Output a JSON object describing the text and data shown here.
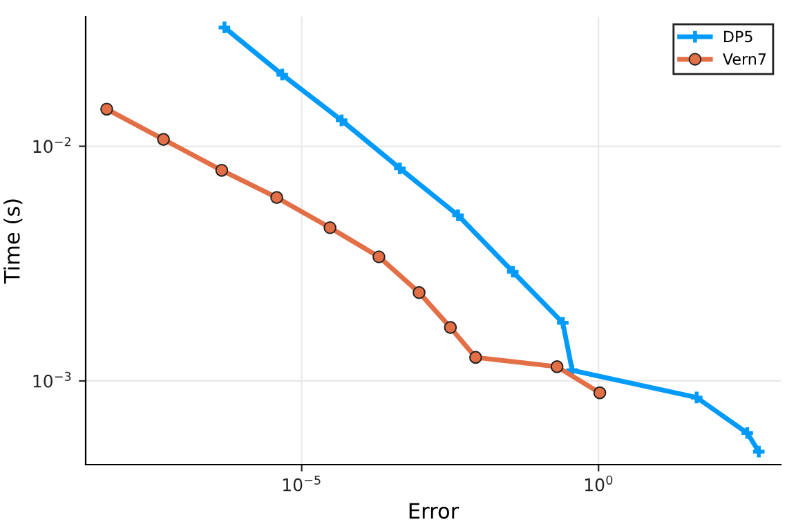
{
  "chart_data": {
    "type": "line",
    "xlabel": "Error",
    "ylabel": "Time (s)",
    "log": "xy",
    "grid": true,
    "legend": "top right",
    "xlim": [
      2.3e-09,
      1175
    ],
    "ylim": [
      0.00044,
      0.0357
    ],
    "xticks": [
      {
        "value": 1e-05,
        "label": "10$^{−5}$"
      },
      {
        "value": 1,
        "label": "10$^{0}$"
      }
    ],
    "yticks": [
      {
        "value": 0.001,
        "label": "10$^{−3}$"
      },
      {
        "value": 0.01,
        "label": "10$^{−2}$"
      }
    ],
    "series": [
      {
        "name": "DP5",
        "color": "#009af9",
        "marker": "cross",
        "x": [
          5e-07,
          4.7e-06,
          4.7e-05,
          0.00045,
          0.0043,
          0.036,
          0.25,
          0.36,
          45,
          320,
          500
        ],
        "values": [
          0.0321,
          0.0202,
          0.0129,
          0.00805,
          0.00508,
          0.00292,
          0.00177,
          0.00111,
          0.00085,
          0.0006,
          0.0005
        ]
      },
      {
        "name": "Vern7",
        "color": "#e26f46",
        "marker": "circle",
        "x": [
          5.2e-09,
          4.7e-08,
          4.5e-07,
          3.8e-06,
          3e-05,
          0.0002,
          0.00095,
          0.0032,
          0.0085,
          0.2,
          1.05
        ],
        "values": [
          0.0144,
          0.0107,
          0.0079,
          0.00605,
          0.0045,
          0.00338,
          0.00238,
          0.00169,
          0.00126,
          0.00115,
          0.00089
        ]
      }
    ]
  }
}
